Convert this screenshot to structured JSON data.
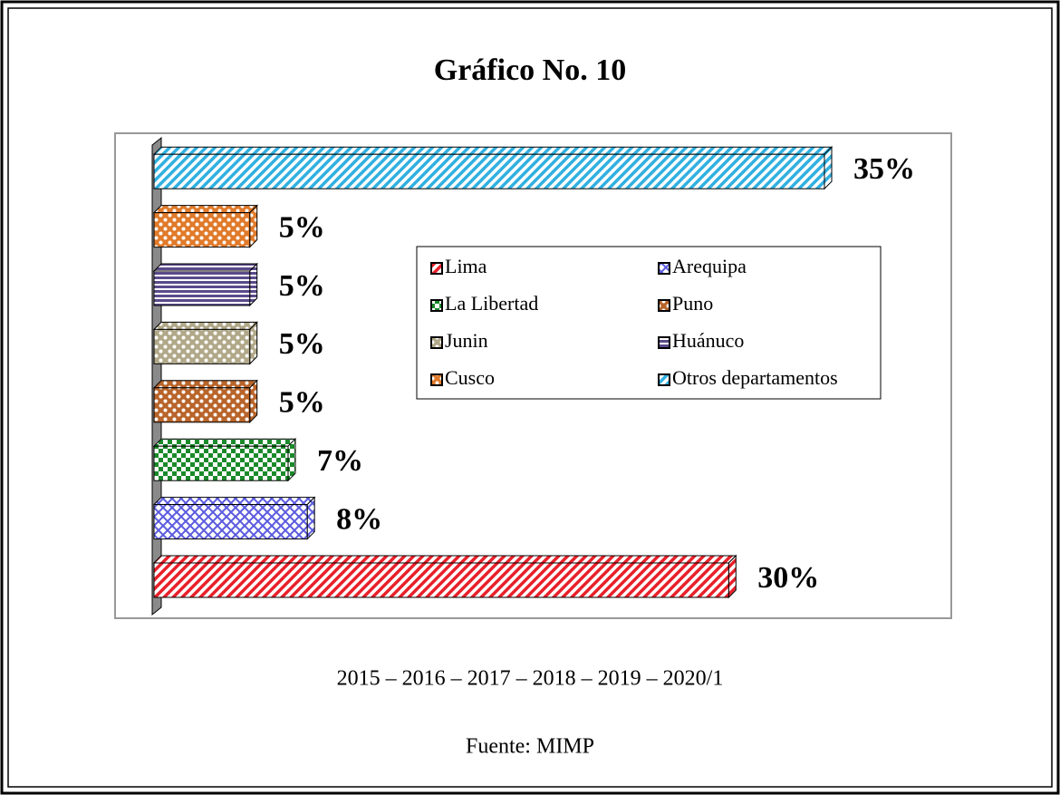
{
  "chart_data": {
    "type": "bar3d_horizontal",
    "title": "Gráfico No. 10",
    "subtitle": "2015 – 2016 – 2017 – 2018 – 2019 – 2020/1",
    "source": "Fuente: MIMP",
    "categories": [
      "Lima",
      "Arequipa",
      "La Libertad",
      "Puno",
      "Junin",
      "Huánuco",
      "Cusco",
      "Otros departamentos"
    ],
    "values": [
      30,
      8,
      7,
      5,
      5,
      5,
      5,
      35
    ],
    "value_labels": [
      "30%",
      "8%",
      "7%",
      "5%",
      "5%",
      "5%",
      "5%",
      "35%"
    ],
    "colors": [
      "#e8202a",
      "#5a5adf",
      "#1a8a2a",
      "#b8642a",
      "#b0a888",
      "#5a4a8a",
      "#e07a2a",
      "#30b0e0"
    ],
    "legend": true
  }
}
